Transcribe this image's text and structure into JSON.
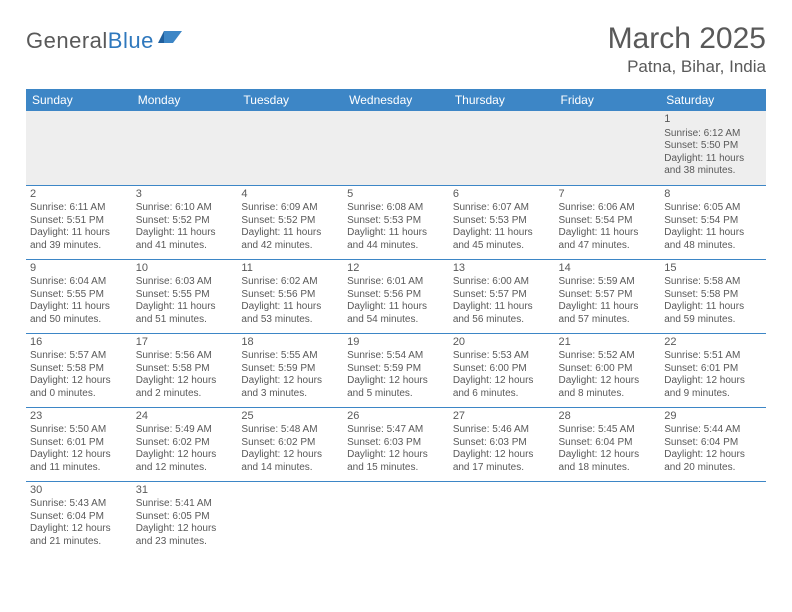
{
  "logo": {
    "part1": "General",
    "part2": "Blue"
  },
  "header": {
    "title": "March 2025",
    "location": "Patna, Bihar, India"
  },
  "colors": {
    "header_bg": "#3d86c6",
    "header_text": "#ffffff",
    "grid_line": "#3d86c6",
    "faded_bg": "#eeeeee",
    "text": "#595959",
    "logo_accent": "#2f78bd"
  },
  "typography": {
    "title_fontsize": 30,
    "location_fontsize": 17,
    "weekday_fontsize": 12,
    "cell_fontsize": 10,
    "daynum_fontsize": 11
  },
  "calendar": {
    "weekdays": [
      "Sunday",
      "Monday",
      "Tuesday",
      "Wednesday",
      "Thursday",
      "Friday",
      "Saturday"
    ],
    "weeks": [
      [
        null,
        null,
        null,
        null,
        null,
        null,
        {
          "n": "1",
          "sr": "Sunrise: 6:12 AM",
          "ss": "Sunset: 5:50 PM",
          "dl1": "Daylight: 11 hours",
          "dl2": "and 38 minutes."
        }
      ],
      [
        {
          "n": "2",
          "sr": "Sunrise: 6:11 AM",
          "ss": "Sunset: 5:51 PM",
          "dl1": "Daylight: 11 hours",
          "dl2": "and 39 minutes."
        },
        {
          "n": "3",
          "sr": "Sunrise: 6:10 AM",
          "ss": "Sunset: 5:52 PM",
          "dl1": "Daylight: 11 hours",
          "dl2": "and 41 minutes."
        },
        {
          "n": "4",
          "sr": "Sunrise: 6:09 AM",
          "ss": "Sunset: 5:52 PM",
          "dl1": "Daylight: 11 hours",
          "dl2": "and 42 minutes."
        },
        {
          "n": "5",
          "sr": "Sunrise: 6:08 AM",
          "ss": "Sunset: 5:53 PM",
          "dl1": "Daylight: 11 hours",
          "dl2": "and 44 minutes."
        },
        {
          "n": "6",
          "sr": "Sunrise: 6:07 AM",
          "ss": "Sunset: 5:53 PM",
          "dl1": "Daylight: 11 hours",
          "dl2": "and 45 minutes."
        },
        {
          "n": "7",
          "sr": "Sunrise: 6:06 AM",
          "ss": "Sunset: 5:54 PM",
          "dl1": "Daylight: 11 hours",
          "dl2": "and 47 minutes."
        },
        {
          "n": "8",
          "sr": "Sunrise: 6:05 AM",
          "ss": "Sunset: 5:54 PM",
          "dl1": "Daylight: 11 hours",
          "dl2": "and 48 minutes."
        }
      ],
      [
        {
          "n": "9",
          "sr": "Sunrise: 6:04 AM",
          "ss": "Sunset: 5:55 PM",
          "dl1": "Daylight: 11 hours",
          "dl2": "and 50 minutes."
        },
        {
          "n": "10",
          "sr": "Sunrise: 6:03 AM",
          "ss": "Sunset: 5:55 PM",
          "dl1": "Daylight: 11 hours",
          "dl2": "and 51 minutes."
        },
        {
          "n": "11",
          "sr": "Sunrise: 6:02 AM",
          "ss": "Sunset: 5:56 PM",
          "dl1": "Daylight: 11 hours",
          "dl2": "and 53 minutes."
        },
        {
          "n": "12",
          "sr": "Sunrise: 6:01 AM",
          "ss": "Sunset: 5:56 PM",
          "dl1": "Daylight: 11 hours",
          "dl2": "and 54 minutes."
        },
        {
          "n": "13",
          "sr": "Sunrise: 6:00 AM",
          "ss": "Sunset: 5:57 PM",
          "dl1": "Daylight: 11 hours",
          "dl2": "and 56 minutes."
        },
        {
          "n": "14",
          "sr": "Sunrise: 5:59 AM",
          "ss": "Sunset: 5:57 PM",
          "dl1": "Daylight: 11 hours",
          "dl2": "and 57 minutes."
        },
        {
          "n": "15",
          "sr": "Sunrise: 5:58 AM",
          "ss": "Sunset: 5:58 PM",
          "dl1": "Daylight: 11 hours",
          "dl2": "and 59 minutes."
        }
      ],
      [
        {
          "n": "16",
          "sr": "Sunrise: 5:57 AM",
          "ss": "Sunset: 5:58 PM",
          "dl1": "Daylight: 12 hours",
          "dl2": "and 0 minutes."
        },
        {
          "n": "17",
          "sr": "Sunrise: 5:56 AM",
          "ss": "Sunset: 5:58 PM",
          "dl1": "Daylight: 12 hours",
          "dl2": "and 2 minutes."
        },
        {
          "n": "18",
          "sr": "Sunrise: 5:55 AM",
          "ss": "Sunset: 5:59 PM",
          "dl1": "Daylight: 12 hours",
          "dl2": "and 3 minutes."
        },
        {
          "n": "19",
          "sr": "Sunrise: 5:54 AM",
          "ss": "Sunset: 5:59 PM",
          "dl1": "Daylight: 12 hours",
          "dl2": "and 5 minutes."
        },
        {
          "n": "20",
          "sr": "Sunrise: 5:53 AM",
          "ss": "Sunset: 6:00 PM",
          "dl1": "Daylight: 12 hours",
          "dl2": "and 6 minutes."
        },
        {
          "n": "21",
          "sr": "Sunrise: 5:52 AM",
          "ss": "Sunset: 6:00 PM",
          "dl1": "Daylight: 12 hours",
          "dl2": "and 8 minutes."
        },
        {
          "n": "22",
          "sr": "Sunrise: 5:51 AM",
          "ss": "Sunset: 6:01 PM",
          "dl1": "Daylight: 12 hours",
          "dl2": "and 9 minutes."
        }
      ],
      [
        {
          "n": "23",
          "sr": "Sunrise: 5:50 AM",
          "ss": "Sunset: 6:01 PM",
          "dl1": "Daylight: 12 hours",
          "dl2": "and 11 minutes."
        },
        {
          "n": "24",
          "sr": "Sunrise: 5:49 AM",
          "ss": "Sunset: 6:02 PM",
          "dl1": "Daylight: 12 hours",
          "dl2": "and 12 minutes."
        },
        {
          "n": "25",
          "sr": "Sunrise: 5:48 AM",
          "ss": "Sunset: 6:02 PM",
          "dl1": "Daylight: 12 hours",
          "dl2": "and 14 minutes."
        },
        {
          "n": "26",
          "sr": "Sunrise: 5:47 AM",
          "ss": "Sunset: 6:03 PM",
          "dl1": "Daylight: 12 hours",
          "dl2": "and 15 minutes."
        },
        {
          "n": "27",
          "sr": "Sunrise: 5:46 AM",
          "ss": "Sunset: 6:03 PM",
          "dl1": "Daylight: 12 hours",
          "dl2": "and 17 minutes."
        },
        {
          "n": "28",
          "sr": "Sunrise: 5:45 AM",
          "ss": "Sunset: 6:04 PM",
          "dl1": "Daylight: 12 hours",
          "dl2": "and 18 minutes."
        },
        {
          "n": "29",
          "sr": "Sunrise: 5:44 AM",
          "ss": "Sunset: 6:04 PM",
          "dl1": "Daylight: 12 hours",
          "dl2": "and 20 minutes."
        }
      ],
      [
        {
          "n": "30",
          "sr": "Sunrise: 5:43 AM",
          "ss": "Sunset: 6:04 PM",
          "dl1": "Daylight: 12 hours",
          "dl2": "and 21 minutes."
        },
        {
          "n": "31",
          "sr": "Sunrise: 5:41 AM",
          "ss": "Sunset: 6:05 PM",
          "dl1": "Daylight: 12 hours",
          "dl2": "and 23 minutes."
        },
        null,
        null,
        null,
        null,
        null
      ]
    ]
  }
}
